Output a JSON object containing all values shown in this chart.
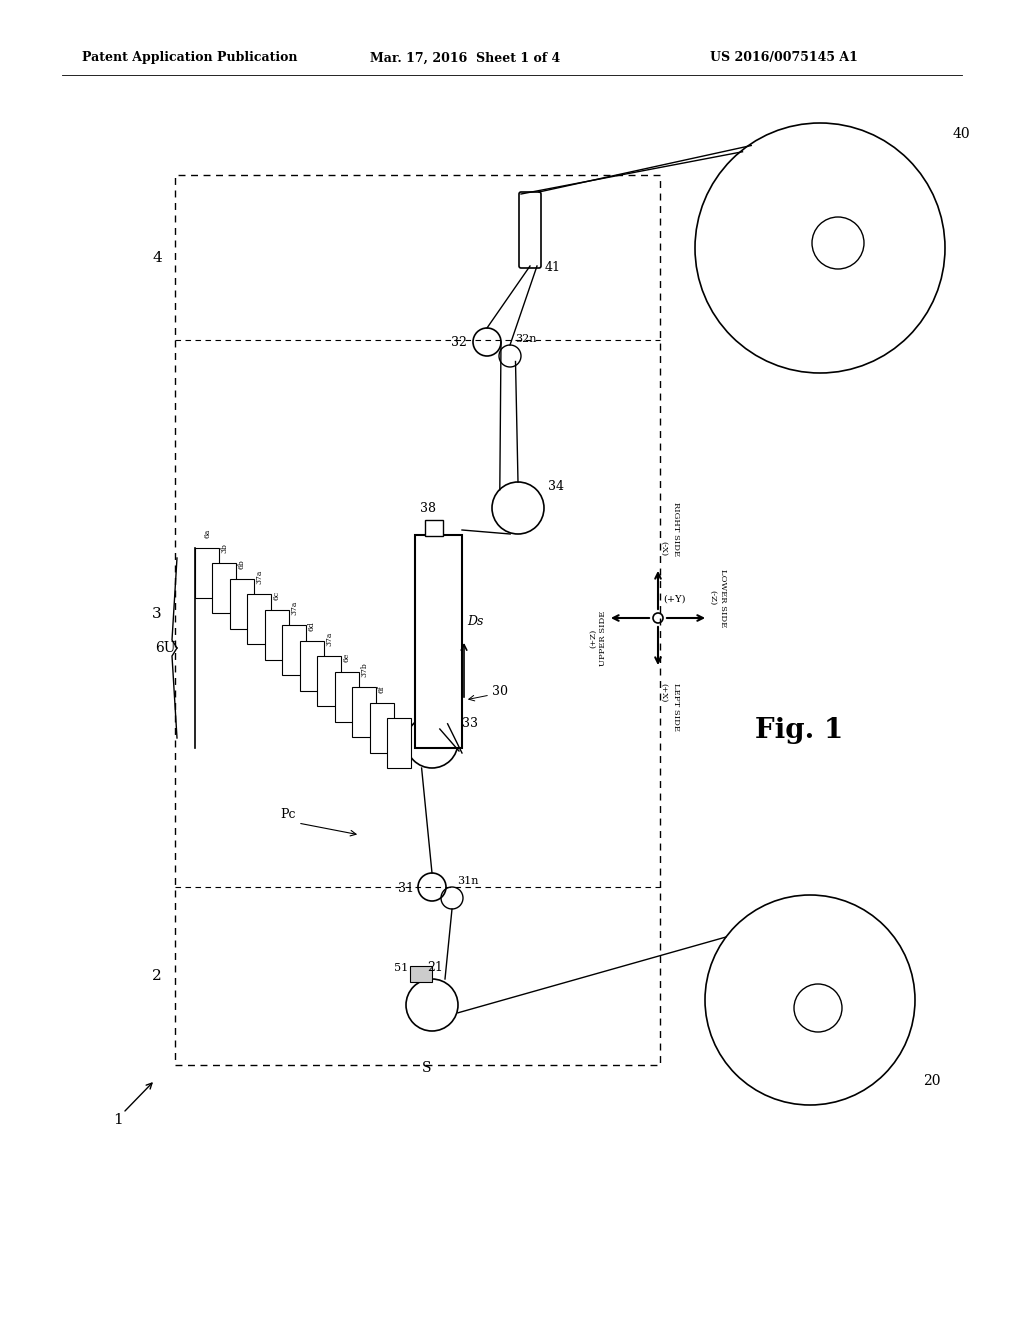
{
  "bg_color": "#ffffff",
  "header_left": "Patent Application Publication",
  "header_center": "Mar. 17, 2016  Sheet 1 of 4",
  "header_right": "US 2016/0075145 A1",
  "fig_label": "Fig. 1"
}
